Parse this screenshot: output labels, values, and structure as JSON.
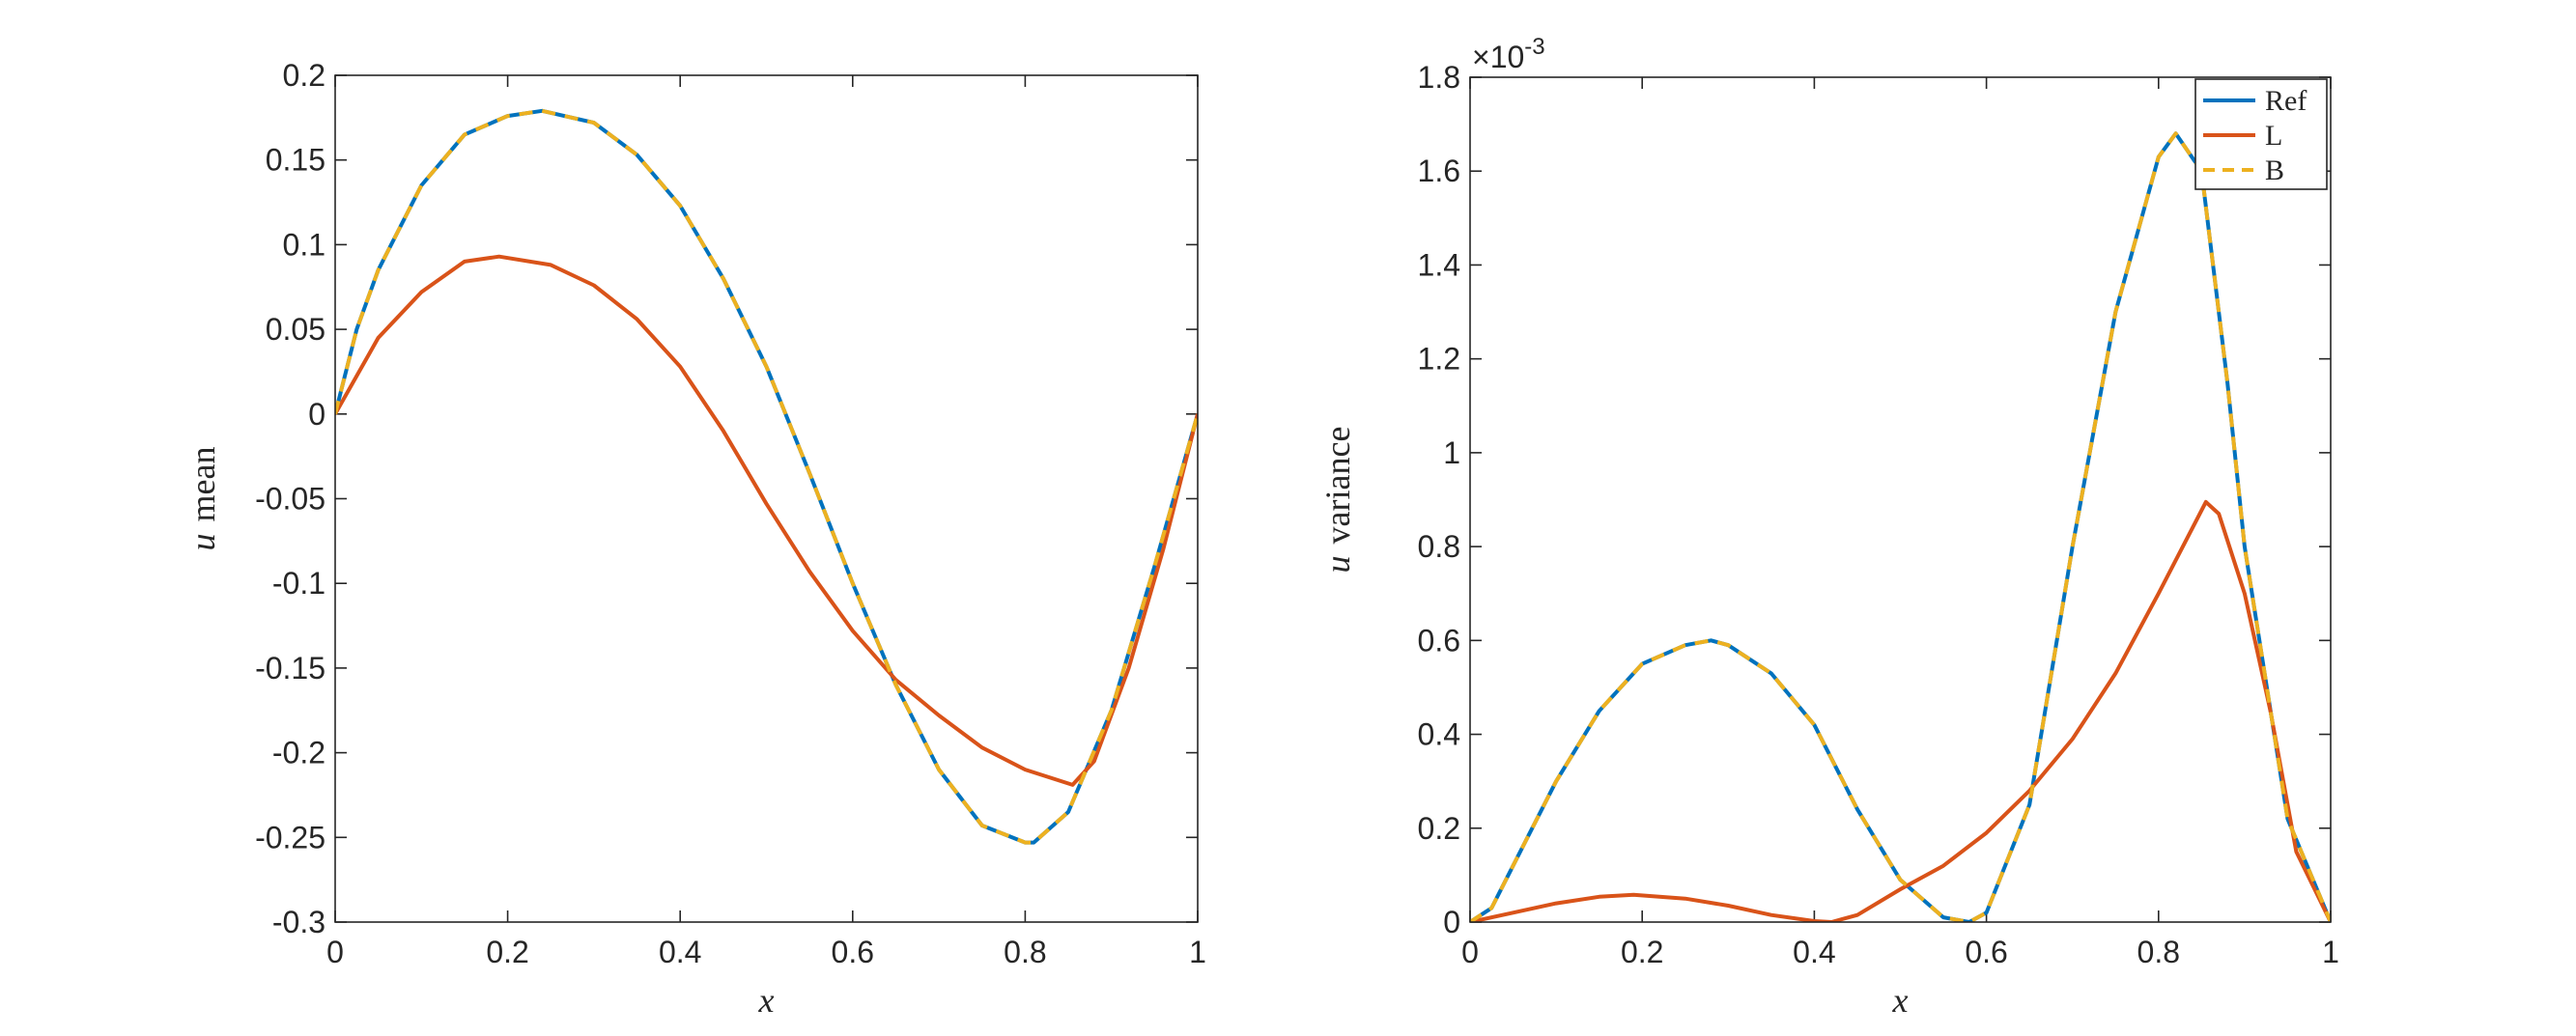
{
  "chart_data": [
    {
      "type": "line",
      "xlabel_var": "x",
      "ylabel_var": "u",
      "ylabel_text": "mean",
      "xlim": [
        0,
        1
      ],
      "ylim": [
        -0.3,
        0.2
      ],
      "xticks": [
        0,
        0.2,
        0.4,
        0.6,
        0.8,
        1
      ],
      "xtick_labels": [
        "0",
        "0.2",
        "0.4",
        "0.6",
        "0.8",
        "1"
      ],
      "yticks": [
        -0.3,
        -0.25,
        -0.2,
        -0.15,
        -0.1,
        -0.05,
        0,
        0.05,
        0.1,
        0.15,
        0.2
      ],
      "ytick_labels": [
        "-0.3",
        "-0.25",
        "-0.2",
        "-0.15",
        "-0.1",
        "-0.05",
        "0",
        "0.05",
        "0.1",
        "0.15",
        "0.2"
      ],
      "grid": false,
      "series": [
        {
          "name": "Ref",
          "color": "#0072BD",
          "dash": "solid",
          "x": [
            0,
            0.025,
            0.05,
            0.1,
            0.15,
            0.2,
            0.24,
            0.3,
            0.35,
            0.4,
            0.45,
            0.5,
            0.55,
            0.6,
            0.65,
            0.7,
            0.75,
            0.8,
            0.81,
            0.85,
            0.9,
            0.95,
            1
          ],
          "y": [
            0,
            0.05,
            0.085,
            0.135,
            0.165,
            0.176,
            0.179,
            0.172,
            0.153,
            0.123,
            0.08,
            0.028,
            -0.035,
            -0.1,
            -0.16,
            -0.21,
            -0.243,
            -0.253,
            -0.253,
            -0.235,
            -0.175,
            -0.09,
            0
          ]
        },
        {
          "name": "L",
          "color": "#D95319",
          "dash": "solid",
          "x": [
            0,
            0.05,
            0.1,
            0.15,
            0.19,
            0.25,
            0.3,
            0.35,
            0.4,
            0.45,
            0.5,
            0.55,
            0.6,
            0.65,
            0.7,
            0.75,
            0.8,
            0.855,
            0.88,
            0.92,
            0.96,
            1
          ],
          "y": [
            0,
            0.045,
            0.072,
            0.09,
            0.093,
            0.088,
            0.076,
            0.056,
            0.028,
            -0.01,
            -0.053,
            -0.093,
            -0.128,
            -0.157,
            -0.178,
            -0.197,
            -0.21,
            -0.219,
            -0.205,
            -0.15,
            -0.08,
            0
          ]
        },
        {
          "name": "B",
          "color": "#EDB120",
          "dash": "dashed",
          "x": [
            0,
            0.025,
            0.05,
            0.1,
            0.15,
            0.2,
            0.24,
            0.3,
            0.35,
            0.4,
            0.45,
            0.5,
            0.55,
            0.6,
            0.65,
            0.7,
            0.75,
            0.8,
            0.81,
            0.85,
            0.9,
            0.95,
            1
          ],
          "y": [
            0,
            0.05,
            0.085,
            0.135,
            0.165,
            0.176,
            0.179,
            0.172,
            0.153,
            0.123,
            0.08,
            0.028,
            -0.035,
            -0.1,
            -0.16,
            -0.21,
            -0.243,
            -0.253,
            -0.253,
            -0.235,
            -0.175,
            -0.09,
            0
          ]
        }
      ]
    },
    {
      "type": "line",
      "xlabel_var": "x",
      "ylabel_var": "u",
      "ylabel_text": "variance",
      "exponent_prefix": "×10",
      "exponent_power": "-3",
      "xlim": [
        0,
        1
      ],
      "ylim": [
        0,
        1.8
      ],
      "xticks": [
        0,
        0.2,
        0.4,
        0.6,
        0.8,
        1
      ],
      "xtick_labels": [
        "0",
        "0.2",
        "0.4",
        "0.6",
        "0.8",
        "1"
      ],
      "yticks": [
        0,
        0.2,
        0.4,
        0.6,
        0.8,
        1,
        1.2,
        1.4,
        1.6,
        1.8
      ],
      "ytick_labels": [
        "0",
        "0.2",
        "0.4",
        "0.6",
        "0.8",
        "1",
        "1.2",
        "1.4",
        "1.6",
        "1.8"
      ],
      "grid": false,
      "legend": {
        "placement": "top-right",
        "entries": [
          "Ref",
          "L",
          "B"
        ]
      },
      "series": [
        {
          "name": "Ref",
          "color": "#0072BD",
          "dash": "solid",
          "x": [
            0,
            0.025,
            0.05,
            0.1,
            0.15,
            0.2,
            0.25,
            0.28,
            0.3,
            0.35,
            0.4,
            0.45,
            0.5,
            0.55,
            0.58,
            0.6,
            0.65,
            0.7,
            0.75,
            0.8,
            0.82,
            0.85,
            0.88,
            0.9,
            0.95,
            1
          ],
          "y": [
            0,
            0.03,
            0.12,
            0.3,
            0.45,
            0.55,
            0.59,
            0.6,
            0.59,
            0.53,
            0.42,
            0.24,
            0.09,
            0.01,
            0,
            0.02,
            0.25,
            0.8,
            1.3,
            1.63,
            1.68,
            1.6,
            1.15,
            0.8,
            0.22,
            0
          ]
        },
        {
          "name": "L",
          "color": "#D95319",
          "dash": "solid",
          "x": [
            0,
            0.05,
            0.1,
            0.15,
            0.19,
            0.25,
            0.3,
            0.35,
            0.4,
            0.42,
            0.45,
            0.5,
            0.55,
            0.6,
            0.65,
            0.7,
            0.75,
            0.8,
            0.855,
            0.87,
            0.9,
            0.93,
            0.96,
            1
          ],
          "y": [
            0,
            0.02,
            0.04,
            0.054,
            0.058,
            0.05,
            0.035,
            0.015,
            0.002,
            0,
            0.015,
            0.07,
            0.12,
            0.19,
            0.28,
            0.39,
            0.53,
            0.7,
            0.895,
            0.87,
            0.7,
            0.45,
            0.15,
            0
          ]
        },
        {
          "name": "B",
          "color": "#EDB120",
          "dash": "dashed",
          "x": [
            0,
            0.025,
            0.05,
            0.1,
            0.15,
            0.2,
            0.25,
            0.28,
            0.3,
            0.35,
            0.4,
            0.45,
            0.5,
            0.55,
            0.58,
            0.6,
            0.65,
            0.7,
            0.75,
            0.8,
            0.82,
            0.85,
            0.88,
            0.9,
            0.95,
            1
          ],
          "y": [
            0,
            0.03,
            0.12,
            0.3,
            0.45,
            0.55,
            0.59,
            0.6,
            0.59,
            0.53,
            0.42,
            0.24,
            0.09,
            0.01,
            0,
            0.02,
            0.25,
            0.8,
            1.3,
            1.63,
            1.68,
            1.6,
            1.15,
            0.8,
            0.22,
            0
          ]
        }
      ]
    }
  ]
}
